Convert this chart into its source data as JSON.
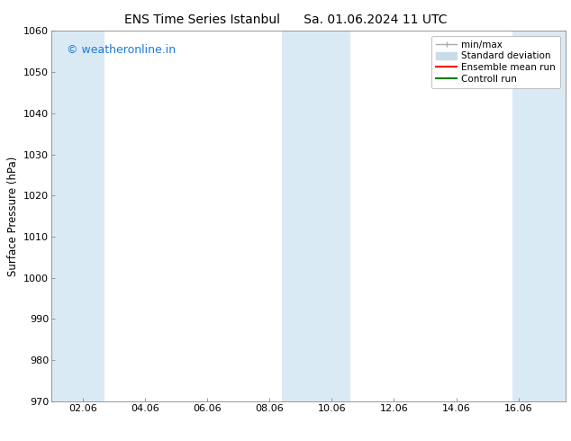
{
  "title_left": "ENS Time Series Istanbul",
  "title_right": "Sa. 01.06.2024 11 UTC",
  "ylabel": "Surface Pressure (hPa)",
  "ylim": [
    970,
    1060
  ],
  "yticks": [
    970,
    980,
    990,
    1000,
    1010,
    1020,
    1030,
    1040,
    1050,
    1060
  ],
  "xlim": [
    0,
    16.5
  ],
  "xtick_labels": [
    "02.06",
    "04.06",
    "06.06",
    "08.06",
    "10.06",
    "12.06",
    "14.06",
    "16.06"
  ],
  "xtick_positions": [
    1,
    3,
    5,
    7,
    9,
    11,
    13,
    15
  ],
  "watermark": "© weatheronline.in",
  "watermark_color": "#1a7ad4",
  "bg_color": "#ffffff",
  "plot_bg_color": "#ffffff",
  "shaded_bands": [
    {
      "x_start": 0.0,
      "x_end": 1.7,
      "color": "#daeaf5"
    },
    {
      "x_start": 7.4,
      "x_end": 9.6,
      "color": "#daeaf5"
    },
    {
      "x_start": 14.8,
      "x_end": 16.5,
      "color": "#daeaf5"
    }
  ],
  "legend_labels": [
    "min/max",
    "Standard deviation",
    "Ensemble mean run",
    "Controll run"
  ],
  "legend_colors": [
    "#aaaaaa",
    "#c8dde8",
    "#ff0000",
    "#008000"
  ],
  "title_fontsize": 10,
  "tick_fontsize": 8,
  "ylabel_fontsize": 8.5,
  "legend_fontsize": 7.5,
  "watermark_fontsize": 9
}
